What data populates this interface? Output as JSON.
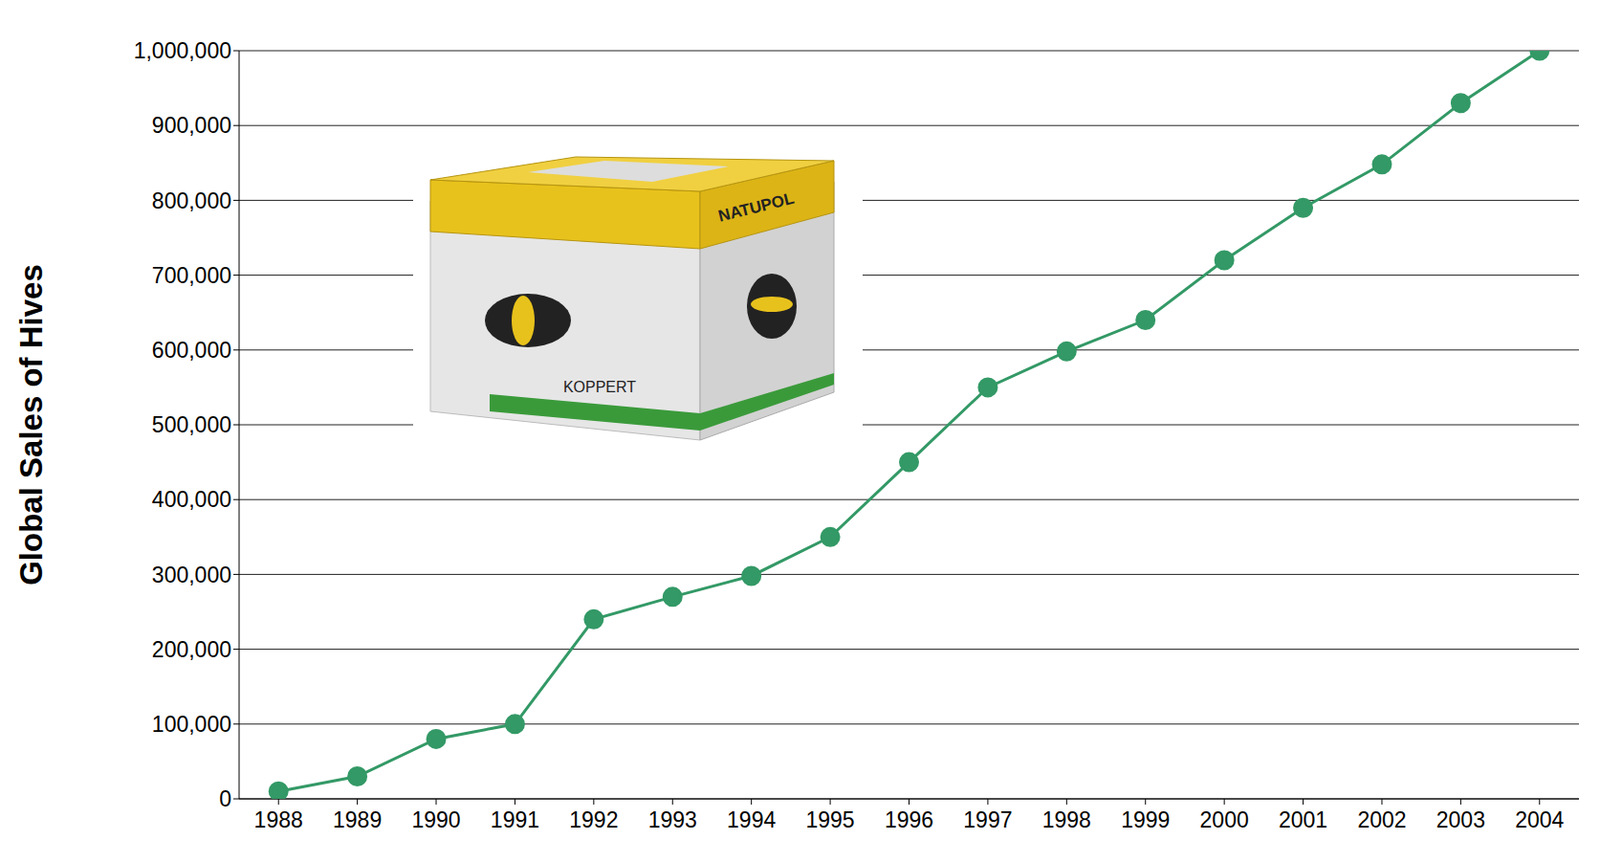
{
  "chart_data": {
    "type": "line",
    "y_label": "Global Sales of Hives",
    "categories": [
      "1988",
      "1989",
      "1990",
      "1991",
      "1992",
      "1993",
      "1994",
      "1995",
      "1996",
      "1997",
      "1998",
      "1999",
      "2000",
      "2001",
      "2002",
      "2003",
      "2004"
    ],
    "values": [
      10000,
      30000,
      80000,
      100000,
      240000,
      270000,
      298000,
      350000,
      450000,
      550000,
      598000,
      640000,
      720000,
      790000,
      848000,
      930000,
      1000000
    ],
    "color": "#339966",
    "marker": "circle",
    "ylim": [
      0,
      1000000
    ],
    "yticks": [
      0,
      {
        "value": 100000,
        "label": "100,000"
      },
      {
        "value": 200000,
        "label": "200,000"
      },
      {
        "value": 300000,
        "label": "300,000"
      },
      {
        "value": 400000,
        "label": "400,000"
      },
      {
        "value": 500000,
        "label": "500,000"
      },
      {
        "value": 600000,
        "label": "600,000"
      },
      {
        "value": 700000,
        "label": "700,000"
      },
      {
        "value": 800000,
        "label": "800,000"
      },
      {
        "value": 900000,
        "label": "900,000"
      },
      {
        "value": 1000000,
        "label": "1,000,000"
      }
    ],
    "grid": true,
    "annotations": [
      "NATUPOL",
      "KOPPERT"
    ]
  }
}
